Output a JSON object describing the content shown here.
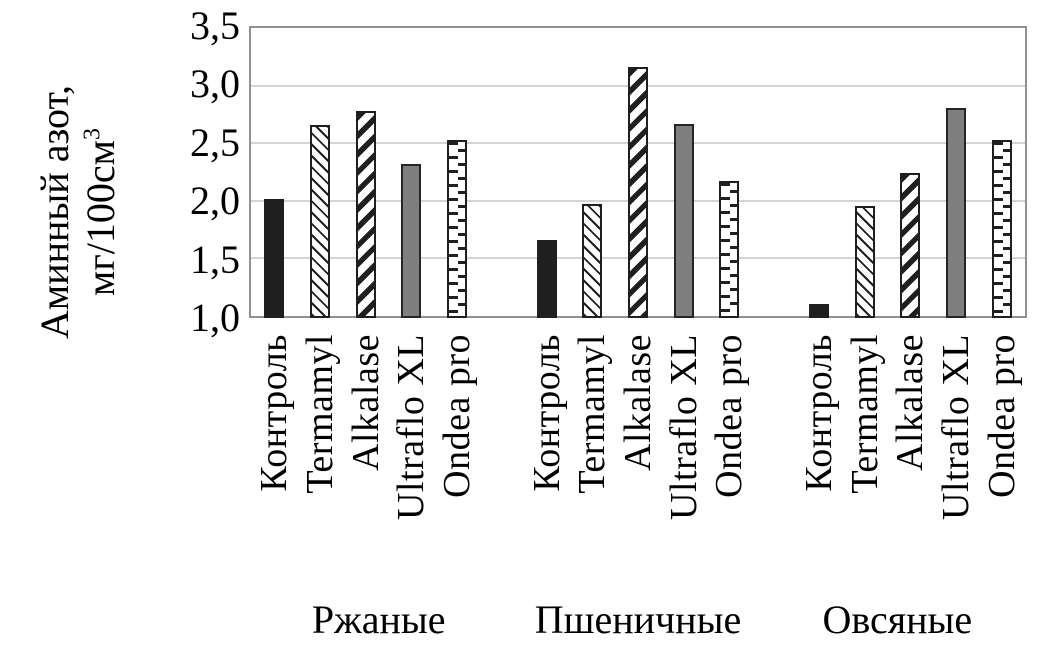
{
  "chart_data": {
    "type": "bar",
    "title": "",
    "ylabel_line1": "Аминный азот,",
    "ylabel_line2_text": "мг/100см",
    "ylabel_line2_sup": "3",
    "ylabel_full": "Аминный азот, мг/100см3",
    "ylim": [
      1.0,
      3.5
    ],
    "y_tick_step": 0.5,
    "y_ticks": [
      "3,5",
      "3,0",
      "2,5",
      "2,0",
      "1,5",
      "1,0"
    ],
    "grid": "horizontal",
    "legend_position": "none",
    "groups": [
      "Ржаные",
      "Пшеничные",
      "Овсяные"
    ],
    "series": [
      {
        "name": "Контроль",
        "pattern": "solid-black",
        "values": [
          2.02,
          1.67,
          1.12
        ]
      },
      {
        "name": "Termamyl",
        "pattern": "diag-thin",
        "values": [
          2.65,
          1.98,
          1.96
        ]
      },
      {
        "name": "Alkalase",
        "pattern": "diag-bold",
        "values": [
          2.77,
          3.15,
          2.24
        ]
      },
      {
        "name": "Ultraflo XL",
        "pattern": "solid-gray",
        "values": [
          2.32,
          2.66,
          2.8
        ]
      },
      {
        "name": "Ondea pro",
        "pattern": "dash-horizontal",
        "values": [
          2.52,
          2.17,
          2.52
        ]
      }
    ],
    "colors": {
      "bar_black": "#1f1f1f",
      "bar_gray": "#7f7f7f",
      "pattern_fg": "#1f1f1f",
      "pattern_bg": "#ffffff",
      "gridline": "#d4d4d4",
      "plot_border": "#919191",
      "text": "#000000"
    }
  }
}
